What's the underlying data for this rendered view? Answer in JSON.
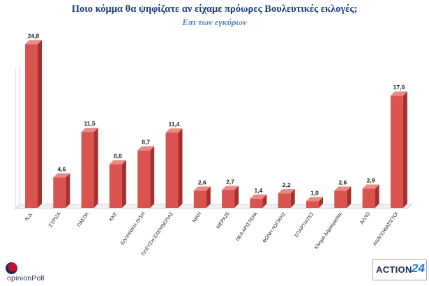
{
  "chart_data": {
    "type": "bar",
    "title": "Ποιο κόμμα θα ψηφίζατε αν είχαμε πρόωρες Βουλευτικές εκλογές;",
    "subtitle": "Επι των εγκύρων",
    "categories": [
      "Ν.Δ.",
      "ΣΥΡΙΖΑ",
      "ΠΑΣΟΚ",
      "ΚΚΕ",
      "ΕΛΛΗΝΙΚΗ ΛΥΣΗ",
      "ΠΛΕΥΣΗ ΕΛΕΥΘΕΡΙΑΣ",
      "ΝΙΚΗ",
      "ΜΕΡΑ25",
      "ΝΕΑ ΑΡΙΣΤΕΡΑ",
      "ΦΩΝΗ ΛΟΓΙΚΗΣ",
      "ΣΠΑΡΤΙΑΤΕΣ",
      "Κίνημα Δημοκρατίας",
      "ΑΛΛΟ",
      "ΑΝΑΠΟΦΑΣΙΣΤΟΙ"
    ],
    "values": [
      24.8,
      4.6,
      11.5,
      6.6,
      8.7,
      11.4,
      2.6,
      2.7,
      1.4,
      2.2,
      1.0,
      2.6,
      2.9,
      17.0
    ],
    "data_labels": [
      "24,8",
      "4,6",
      "11,5",
      "6,6",
      "8,7",
      "11,4",
      "2,6",
      "2,7",
      "1,4",
      "2,2",
      "1,0",
      "2,6",
      "2,9",
      "17,0"
    ],
    "ylim": [
      0,
      26
    ],
    "grid": false,
    "bar_color": "#d9534f",
    "bar_side_color": "#a8302c",
    "bar_top_color": "#e98a86"
  },
  "logos": {
    "left": {
      "prefix": "o",
      "main": "pinionPoll"
    },
    "right": {
      "main": "ACTION",
      "number": "24"
    }
  }
}
